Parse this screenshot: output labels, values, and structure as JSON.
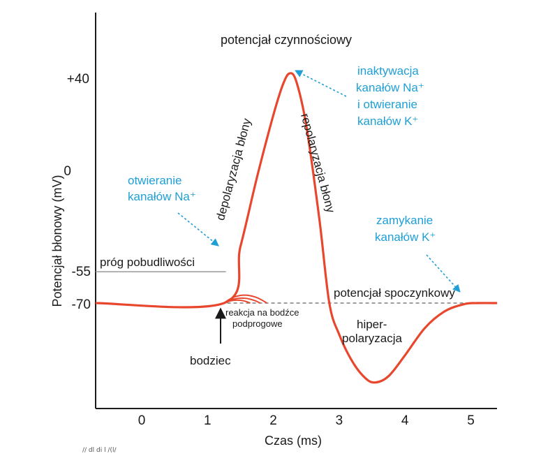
{
  "chart_data": {
    "type": "line",
    "title": "potencjał czynnościowy",
    "xlabel": "Czas (ms)",
    "ylabel": "Potencjał błonowy (mV)",
    "xlim": [
      -0.7,
      5.4
    ],
    "x_ticks": [
      "0",
      "1",
      "2",
      "3",
      "4",
      "5"
    ],
    "y_ticks": [
      {
        "label": "+40",
        "value": 40
      },
      {
        "label": "0",
        "value": 0
      },
      {
        "label": "-55",
        "value": -55
      },
      {
        "label": "-70",
        "value": -70
      }
    ],
    "series": [
      {
        "name": "potencjał czynnościowy",
        "color": "#e8472e",
        "x": [
          -0.7,
          1.25,
          1.5,
          1.75,
          2.0,
          2.15,
          2.25,
          2.35,
          2.5,
          2.7,
          2.85,
          3.0,
          3.2,
          3.4,
          3.55,
          3.75,
          4.0,
          4.3,
          4.6,
          4.9,
          5.1,
          5.4
        ],
        "y": [
          -70,
          -70,
          -43,
          -10,
          20,
          35,
          40,
          36,
          15,
          -30,
          -70,
          -85,
          -98,
          -106,
          -108,
          -105,
          -95,
          -82,
          -74,
          -70.5,
          -70,
          -70
        ]
      },
      {
        "name": "reakcja na bodźce podprogowe",
        "color": "#e8472e",
        "bumps": [
          {
            "x": [
              1.25,
              1.55,
              1.9
            ],
            "peak": -66
          },
          {
            "x": [
              1.25,
              1.52,
              1.8
            ],
            "peak": -67.5
          },
          {
            "x": [
              1.25,
              1.45,
              1.65
            ],
            "peak": -68.5
          }
        ]
      }
    ],
    "reference_lines": [
      {
        "name": "próg pobudliwości",
        "value": -55,
        "x_end": 1.28,
        "color": "#9a9a9a"
      },
      {
        "name": "potencjał spoczynkowy",
        "value": -70,
        "color": "#7d7d7d",
        "dashed": true
      }
    ],
    "labels": {
      "threshold": "próg pobudliwości",
      "resting": "potencjał spoczynkowy",
      "depolarization": "depolaryzacja błony",
      "repolarization": "repolaryzacja błony",
      "hyper1": "hiper-",
      "hyper2": "polaryzacja",
      "subthreshold1": "reakcja na bodźce",
      "subthreshold2": "podprogowe",
      "stimulus": "bodziec"
    },
    "annotations_blue": {
      "na_open": [
        "otwieranie",
        "kanałów Na⁺"
      ],
      "inact": [
        "inaktywacja",
        "kanałów Na⁺",
        "i otwieranie",
        "kanałów K⁺"
      ],
      "k_close": [
        "zamykanie",
        "kanałów K⁺"
      ]
    },
    "colors": {
      "curve": "#e8472e",
      "annotation": "#1e9fd6",
      "axis": "#1a1a1a"
    }
  },
  "footer_note": "//  dl   di    l  /(l/"
}
